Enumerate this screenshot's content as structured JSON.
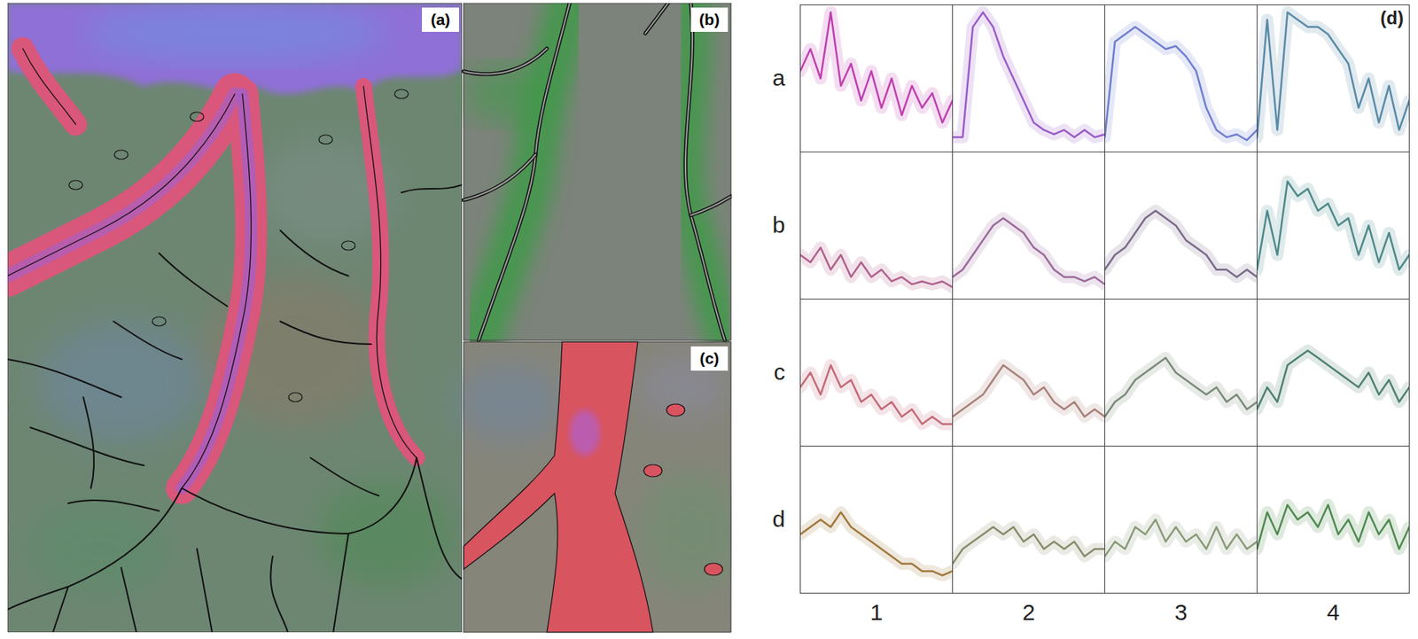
{
  "maps": {
    "labels": [
      "(a)",
      "(b)",
      "(c)"
    ]
  },
  "chart_data": {
    "type": "line",
    "title": "(d)",
    "rows": [
      "a",
      "b",
      "c",
      "d"
    ],
    "columns": [
      "1",
      "2",
      "3",
      "4"
    ],
    "x": [
      0,
      1,
      2,
      3,
      4,
      5,
      6,
      7,
      8,
      9,
      10,
      11,
      12,
      13,
      14,
      15
    ],
    "xlim": [
      0,
      15
    ],
    "ylim": [
      0,
      1
    ],
    "tick_labels": false,
    "cells": [
      {
        "row": "a",
        "column": "1",
        "color": "#c040b0",
        "values": [
          0.55,
          0.7,
          0.5,
          0.95,
          0.45,
          0.6,
          0.35,
          0.55,
          0.3,
          0.5,
          0.25,
          0.45,
          0.3,
          0.4,
          0.2,
          0.35
        ]
      },
      {
        "row": "a",
        "column": "2",
        "color": "#9a5cc8",
        "values": [
          0.1,
          0.1,
          0.85,
          0.95,
          0.85,
          0.65,
          0.5,
          0.35,
          0.2,
          0.15,
          0.12,
          0.15,
          0.1,
          0.15,
          0.1,
          0.12
        ]
      },
      {
        "row": "a",
        "column": "3",
        "color": "#6f7fd0",
        "values": [
          0.1,
          0.75,
          0.8,
          0.85,
          0.8,
          0.75,
          0.7,
          0.72,
          0.65,
          0.55,
          0.3,
          0.15,
          0.1,
          0.12,
          0.08,
          0.15
        ]
      },
      {
        "row": "a",
        "column": "4",
        "color": "#5a8aa8",
        "values": [
          0.1,
          0.9,
          0.15,
          0.95,
          0.9,
          0.85,
          0.85,
          0.8,
          0.7,
          0.6,
          0.3,
          0.5,
          0.2,
          0.45,
          0.15,
          0.35
        ]
      },
      {
        "row": "b",
        "column": "1",
        "color": "#b0608c",
        "values": [
          0.3,
          0.25,
          0.35,
          0.2,
          0.3,
          0.15,
          0.25,
          0.15,
          0.2,
          0.12,
          0.15,
          0.1,
          0.12,
          0.1,
          0.12,
          0.08
        ]
      },
      {
        "row": "b",
        "column": "2",
        "color": "#9a6a9a",
        "values": [
          0.15,
          0.2,
          0.3,
          0.4,
          0.5,
          0.55,
          0.5,
          0.45,
          0.35,
          0.3,
          0.2,
          0.15,
          0.15,
          0.12,
          0.15,
          0.1
        ]
      },
      {
        "row": "b",
        "column": "3",
        "color": "#7a6a8a",
        "values": [
          0.2,
          0.3,
          0.35,
          0.45,
          0.55,
          0.6,
          0.55,
          0.5,
          0.4,
          0.35,
          0.3,
          0.2,
          0.2,
          0.15,
          0.2,
          0.15
        ]
      },
      {
        "row": "b",
        "column": "4",
        "color": "#4f8a8a",
        "values": [
          0.2,
          0.6,
          0.3,
          0.8,
          0.7,
          0.75,
          0.6,
          0.65,
          0.5,
          0.55,
          0.3,
          0.5,
          0.25,
          0.45,
          0.2,
          0.3
        ]
      },
      {
        "row": "c",
        "column": "1",
        "color": "#c46a78",
        "values": [
          0.4,
          0.5,
          0.35,
          0.55,
          0.4,
          0.45,
          0.3,
          0.35,
          0.25,
          0.3,
          0.2,
          0.25,
          0.15,
          0.2,
          0.15,
          0.15
        ]
      },
      {
        "row": "c",
        "column": "2",
        "color": "#a88078",
        "values": [
          0.2,
          0.25,
          0.3,
          0.35,
          0.45,
          0.55,
          0.5,
          0.45,
          0.35,
          0.4,
          0.3,
          0.25,
          0.3,
          0.2,
          0.25,
          0.2
        ]
      },
      {
        "row": "c",
        "column": "3",
        "color": "#7a8a78",
        "values": [
          0.2,
          0.3,
          0.35,
          0.45,
          0.5,
          0.55,
          0.6,
          0.5,
          0.45,
          0.4,
          0.35,
          0.4,
          0.3,
          0.35,
          0.25,
          0.3
        ]
      },
      {
        "row": "c",
        "column": "4",
        "color": "#4f8070",
        "values": [
          0.25,
          0.4,
          0.3,
          0.55,
          0.6,
          0.65,
          0.6,
          0.55,
          0.5,
          0.45,
          0.4,
          0.5,
          0.35,
          0.45,
          0.3,
          0.4
        ]
      },
      {
        "row": "d",
        "column": "1",
        "color": "#a0783c",
        "values": [
          0.4,
          0.45,
          0.5,
          0.45,
          0.55,
          0.45,
          0.4,
          0.35,
          0.3,
          0.25,
          0.2,
          0.2,
          0.15,
          0.15,
          0.12,
          0.15
        ]
      },
      {
        "row": "d",
        "column": "2",
        "color": "#8a8a6a",
        "values": [
          0.2,
          0.3,
          0.35,
          0.4,
          0.45,
          0.4,
          0.45,
          0.35,
          0.4,
          0.3,
          0.35,
          0.3,
          0.35,
          0.25,
          0.3,
          0.3
        ]
      },
      {
        "row": "d",
        "column": "3",
        "color": "#8a9a78",
        "values": [
          0.25,
          0.35,
          0.3,
          0.45,
          0.4,
          0.5,
          0.35,
          0.45,
          0.35,
          0.4,
          0.3,
          0.45,
          0.3,
          0.4,
          0.3,
          0.35
        ]
      },
      {
        "row": "d",
        "column": "4",
        "color": "#4f8a50",
        "values": [
          0.3,
          0.55,
          0.4,
          0.6,
          0.5,
          0.55,
          0.45,
          0.6,
          0.4,
          0.5,
          0.35,
          0.55,
          0.4,
          0.5,
          0.3,
          0.45
        ]
      }
    ]
  }
}
